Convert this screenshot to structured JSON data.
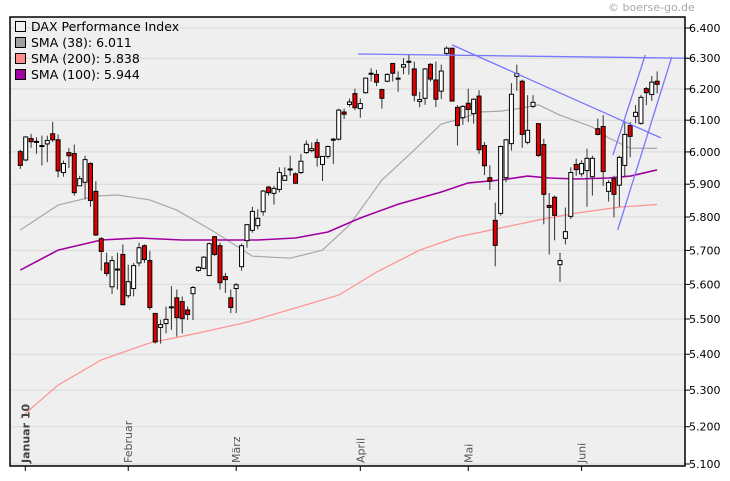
{
  "copyright": "© boerse-go.de",
  "chart_data": {
    "type": "candlestick",
    "title": "",
    "y_scale": "log",
    "ylim": [
      5.1,
      6.4
    ],
    "y_ticks": [
      "6.400",
      "6.300",
      "6.200",
      "6.100",
      "6.000",
      "5.900",
      "5.800",
      "5.700",
      "5.600",
      "5.500",
      "5.400",
      "5.300",
      "5.200",
      "5.100"
    ],
    "grid": true,
    "legend_position": "top-left",
    "legend": [
      {
        "label": "DAX Performance Index",
        "color": "#f0f0f0"
      },
      {
        "label": "SMA (38): 6.011",
        "color": "#a0a0a0"
      },
      {
        "label": "SMA (200): 5.838",
        "color": "#ff8c8c"
      },
      {
        "label": "SMA (100): 5.944",
        "color": "#a000a0"
      }
    ],
    "x_ticks": [
      {
        "label": "Januar 10",
        "at_candle": 1,
        "bold": true
      },
      {
        "label": "Februar",
        "at_candle": 21
      },
      {
        "label": "März",
        "at_candle": 41
      },
      {
        "label": "April",
        "at_candle": 64
      },
      {
        "label": "Mai",
        "at_candle": 84
      },
      {
        "label": "Juni",
        "at_candle": 105
      }
    ],
    "colors": {
      "up": "#ffffff",
      "down": "#e00000",
      "trendline": "#7777ff",
      "grid": "#d9d9d9",
      "background": "#efefef"
    },
    "ohlc_fields": [
      "open",
      "high",
      "low",
      "close"
    ],
    "candles": [
      [
        6.001,
        6.007,
        5.947,
        5.958
      ],
      [
        5.975,
        6.049,
        5.971,
        6.047
      ],
      [
        6.042,
        6.057,
        6.013,
        6.032
      ],
      [
        6.033,
        6.046,
        5.994,
        6.032
      ],
      [
        6.02,
        6.051,
        5.958,
        6.019
      ],
      [
        6.025,
        6.051,
        5.968,
        6.036
      ],
      [
        6.057,
        6.095,
        6.031,
        6.038
      ],
      [
        6.038,
        6.055,
        5.921,
        5.941
      ],
      [
        5.936,
        5.973,
        5.923,
        5.964
      ],
      [
        5.998,
        6.012,
        5.95,
        5.988
      ],
      [
        5.995,
        6.023,
        5.865,
        5.874
      ],
      [
        5.895,
        5.926,
        5.895,
        5.917
      ],
      [
        5.906,
        5.988,
        5.854,
        5.976
      ],
      [
        5.964,
        5.968,
        5.831,
        5.85
      ],
      [
        5.878,
        5.909,
        5.743,
        5.746
      ],
      [
        5.735,
        5.74,
        5.64,
        5.697
      ],
      [
        5.663,
        5.693,
        5.624,
        5.632
      ],
      [
        5.593,
        5.683,
        5.572,
        5.67
      ],
      [
        5.644,
        5.693,
        5.585,
        5.645
      ],
      [
        5.688,
        5.718,
        5.541,
        5.541
      ],
      [
        5.567,
        5.658,
        5.56,
        5.608
      ],
      [
        5.588,
        5.663,
        5.565,
        5.655
      ],
      [
        5.663,
        5.723,
        5.653,
        5.708
      ],
      [
        5.714,
        5.718,
        5.663,
        5.673
      ],
      [
        5.67,
        5.698,
        5.526,
        5.533
      ],
      [
        5.516,
        5.517,
        5.43,
        5.435
      ],
      [
        5.476,
        5.498,
        5.43,
        5.484
      ],
      [
        5.487,
        5.536,
        5.459,
        5.499
      ],
      [
        5.534,
        5.595,
        5.469,
        5.535
      ],
      [
        5.561,
        5.585,
        5.45,
        5.504
      ],
      [
        5.55,
        5.565,
        5.459,
        5.501
      ],
      [
        5.526,
        5.536,
        5.497,
        5.513
      ],
      [
        5.573,
        5.595,
        5.497,
        5.591
      ],
      [
        5.641,
        5.654,
        5.636,
        5.65
      ],
      [
        5.647,
        5.683,
        5.644,
        5.68
      ],
      [
        5.626,
        5.723,
        5.624,
        5.72
      ],
      [
        5.741,
        5.743,
        5.683,
        5.688
      ],
      [
        5.714,
        5.723,
        5.585,
        5.605
      ],
      [
        5.623,
        5.634,
        5.575,
        5.614
      ],
      [
        5.561,
        5.585,
        5.517,
        5.533
      ],
      [
        5.588,
        5.604,
        5.517,
        5.599
      ],
      [
        5.652,
        5.72,
        5.64,
        5.714
      ],
      [
        5.729,
        5.778,
        5.708,
        5.777
      ],
      [
        5.76,
        5.831,
        5.753,
        5.817
      ],
      [
        5.774,
        5.824,
        5.763,
        5.796
      ],
      [
        5.816,
        5.882,
        5.804,
        5.879
      ],
      [
        5.891,
        5.895,
        5.865,
        5.874
      ],
      [
        5.872,
        5.895,
        5.838,
        5.887
      ],
      [
        5.884,
        5.952,
        5.875,
        5.936
      ],
      [
        5.912,
        5.952,
        5.91,
        5.926
      ],
      [
        5.946,
        5.988,
        5.926,
        5.947
      ],
      [
        5.932,
        5.936,
        5.901,
        5.903
      ],
      [
        5.936,
        5.994,
        5.931,
        5.971
      ],
      [
        5.998,
        6.036,
        5.994,
        6.024
      ],
      [
        6.004,
        6.03,
        5.999,
        6.01
      ],
      [
        6.029,
        6.041,
        5.954,
        5.983
      ],
      [
        5.961,
        5.986,
        5.91,
        5.986
      ],
      [
        5.986,
        6.02,
        5.979,
        6.017
      ],
      [
        6.039,
        6.044,
        5.963,
        6.04
      ],
      [
        6.04,
        6.137,
        6.036,
        6.132
      ],
      [
        6.126,
        6.137,
        6.104,
        6.119
      ],
      [
        6.15,
        6.169,
        6.143,
        6.158
      ],
      [
        6.185,
        6.201,
        6.132,
        6.14
      ],
      [
        6.137,
        6.169,
        6.108,
        6.153
      ],
      [
        6.188,
        6.235,
        6.185,
        6.235
      ],
      [
        6.25,
        6.267,
        6.224,
        6.251
      ],
      [
        6.247,
        6.262,
        6.209,
        6.222
      ],
      [
        6.198,
        6.201,
        6.137,
        6.17
      ],
      [
        6.225,
        6.251,
        6.222,
        6.247
      ],
      [
        6.283,
        6.284,
        6.224,
        6.251
      ],
      [
        6.234,
        6.257,
        6.191,
        6.235
      ],
      [
        6.271,
        6.3,
        6.248,
        6.279
      ],
      [
        6.289,
        6.311,
        6.246,
        6.29
      ],
      [
        6.265,
        6.289,
        6.16,
        6.18
      ],
      [
        6.16,
        6.191,
        6.141,
        6.166
      ],
      [
        6.17,
        6.268,
        6.149,
        6.265
      ],
      [
        6.28,
        6.284,
        6.224,
        6.232
      ],
      [
        6.229,
        6.289,
        6.142,
        6.167
      ],
      [
        6.193,
        6.279,
        6.168,
        6.258
      ],
      [
        6.316,
        6.339,
        6.307,
        6.333
      ],
      [
        6.333,
        6.334,
        6.16,
        6.161
      ],
      [
        6.141,
        6.148,
        6.02,
        6.083
      ],
      [
        6.108,
        6.148,
        6.085,
        6.144
      ],
      [
        6.154,
        6.201,
        6.094,
        6.134
      ],
      [
        6.121,
        6.17,
        6.089,
        6.167
      ],
      [
        6.177,
        6.196,
        5.994,
        6.007
      ],
      [
        6.02,
        6.031,
        5.928,
        5.957
      ],
      [
        5.92,
        5.958,
        5.882,
        5.909
      ],
      [
        5.79,
        5.844,
        5.653,
        5.715
      ],
      [
        5.811,
        6.02,
        5.804,
        6.017
      ],
      [
        5.92,
        6.041,
        5.906,
        6.038
      ],
      [
        6.026,
        6.219,
        6.004,
        6.183
      ],
      [
        6.241,
        6.279,
        6.194,
        6.25
      ],
      [
        6.225,
        6.23,
        6.013,
        6.055
      ],
      [
        6.03,
        6.18,
        6.024,
        6.068
      ],
      [
        6.144,
        6.18,
        6.138,
        6.157
      ],
      [
        6.089,
        6.089,
        5.984,
        5.989
      ],
      [
        6.023,
        6.041,
        5.778,
        5.869
      ],
      [
        5.835,
        5.873,
        5.688,
        5.829
      ],
      [
        5.86,
        5.865,
        5.73,
        5.805
      ],
      [
        5.658,
        5.693,
        5.607,
        5.67
      ],
      [
        5.736,
        5.829,
        5.718,
        5.756
      ],
      [
        5.802,
        5.952,
        5.794,
        5.936
      ],
      [
        5.961,
        5.979,
        5.926,
        5.945
      ],
      [
        5.932,
        5.974,
        5.923,
        5.964
      ],
      [
        5.942,
        6.01,
        5.831,
        5.98
      ],
      [
        5.923,
        5.988,
        5.865,
        5.98
      ],
      [
        6.073,
        6.105,
        6.052,
        6.055
      ],
      [
        6.08,
        6.116,
        5.895,
        5.939
      ],
      [
        5.878,
        5.912,
        5.847,
        5.905
      ],
      [
        5.917,
        5.926,
        5.799,
        5.869
      ],
      [
        5.897,
        5.988,
        5.831,
        5.983
      ],
      [
        5.958,
        6.094,
        5.921,
        6.055
      ],
      [
        6.083,
        6.094,
        5.983,
        6.049
      ],
      [
        6.112,
        6.148,
        6.09,
        6.125
      ],
      [
        6.09,
        6.18,
        6.086,
        6.173
      ],
      [
        6.201,
        6.206,
        6.148,
        6.188
      ],
      [
        6.182,
        6.242,
        6.162,
        6.222
      ],
      [
        6.225,
        6.257,
        6.186,
        6.215
      ]
    ],
    "sma_series": [
      {
        "name": "SMA (38)",
        "color": "#a8a8a8",
        "points": [
          [
            1,
            5.761
          ],
          [
            8,
            5.836
          ],
          [
            15,
            5.864
          ],
          [
            19,
            5.867
          ],
          [
            25,
            5.852
          ],
          [
            30,
            5.821
          ],
          [
            37,
            5.755
          ],
          [
            44,
            5.683
          ],
          [
            51,
            5.677
          ],
          [
            57,
            5.701
          ],
          [
            62,
            5.776
          ],
          [
            68,
            5.913
          ],
          [
            73,
            5.99
          ],
          [
            79,
            6.088
          ],
          [
            83,
            6.107
          ],
          [
            86,
            6.126
          ],
          [
            90,
            6.129
          ],
          [
            94,
            6.139
          ],
          [
            97,
            6.149
          ],
          [
            101,
            6.116
          ],
          [
            107,
            6.078
          ],
          [
            110,
            6.044
          ],
          [
            114,
            6.012
          ],
          [
            119,
            6.011
          ]
        ]
      },
      {
        "name": "SMA (200)",
        "color": "#ff9090",
        "points": [
          [
            1,
            5.224
          ],
          [
            8,
            5.314
          ],
          [
            16,
            5.384
          ],
          [
            25,
            5.432
          ],
          [
            34,
            5.46
          ],
          [
            43,
            5.491
          ],
          [
            52,
            5.532
          ],
          [
            60,
            5.569
          ],
          [
            67,
            5.636
          ],
          [
            75,
            5.701
          ],
          [
            82,
            5.74
          ],
          [
            90,
            5.767
          ],
          [
            97,
            5.791
          ],
          [
            104,
            5.812
          ],
          [
            112,
            5.83
          ],
          [
            119,
            5.838
          ]
        ]
      },
      {
        "name": "SMA (100)",
        "color": "#a000a0",
        "points": [
          [
            1,
            5.642
          ],
          [
            8,
            5.701
          ],
          [
            16,
            5.731
          ],
          [
            23,
            5.737
          ],
          [
            31,
            5.731
          ],
          [
            38,
            5.731
          ],
          [
            45,
            5.731
          ],
          [
            52,
            5.737
          ],
          [
            58,
            5.755
          ],
          [
            64,
            5.797
          ],
          [
            71,
            5.839
          ],
          [
            79,
            5.876
          ],
          [
            84,
            5.904
          ],
          [
            90,
            5.913
          ],
          [
            95,
            5.925
          ],
          [
            99,
            5.919
          ],
          [
            104,
            5.916
          ],
          [
            110,
            5.919
          ],
          [
            114,
            5.925
          ],
          [
            119,
            5.944
          ]
        ]
      }
    ],
    "trendlines": [
      [
        [
          63.6,
          6.314
        ],
        [
          124.7,
          6.3
        ]
      ],
      [
        [
          81,
          6.344
        ],
        [
          119.7,
          6.044
        ]
      ],
      [
        [
          110.8,
          5.99
        ],
        [
          116.8,
          6.311
        ]
      ],
      [
        [
          111.7,
          5.761
        ],
        [
          121.7,
          6.304
        ]
      ]
    ]
  }
}
